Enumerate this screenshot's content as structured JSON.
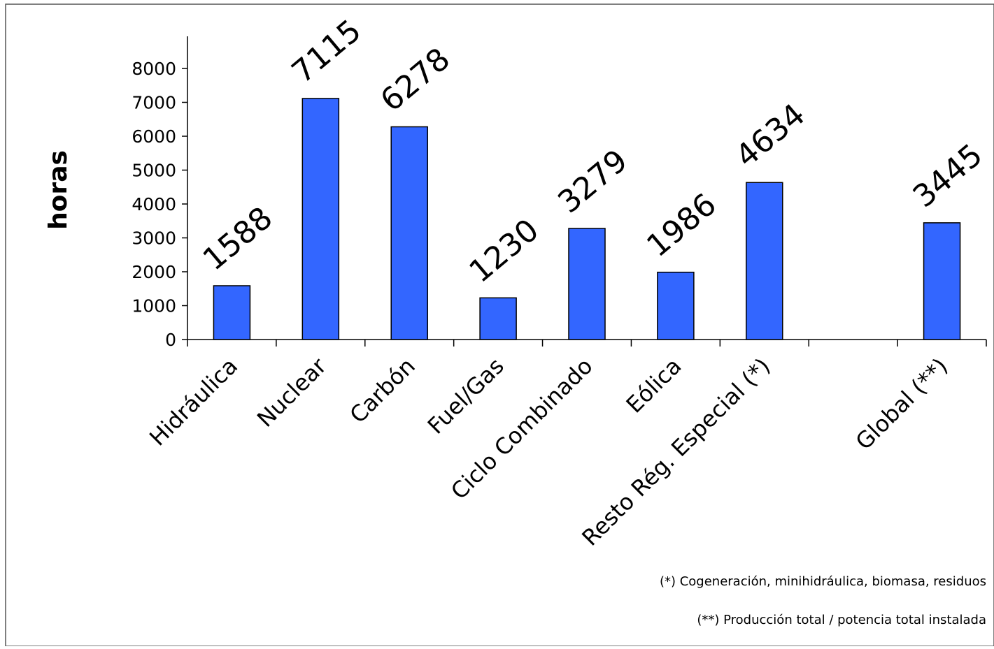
{
  "chart_data": {
    "type": "bar",
    "title": "",
    "xlabel": "",
    "ylabel": "horas",
    "ylim": [
      0,
      8000
    ],
    "y_ticks": [
      0,
      1000,
      2000,
      3000,
      4000,
      5000,
      6000,
      7000,
      8000
    ],
    "categories": [
      "Hidráulica",
      "Nuclear",
      "Carbón",
      "Fuel/Gas",
      "Ciclo Combinado",
      "Eólica",
      "Resto Rég. Especial (*)",
      "",
      "Global (**)"
    ],
    "values": [
      1588,
      7115,
      6278,
      1230,
      3279,
      1986,
      4634,
      null,
      3445
    ],
    "data_labels": [
      "1588",
      "7115",
      "6278",
      "1230",
      "3279",
      "1986",
      "4634",
      "",
      "3445"
    ],
    "bar_color": "#3366FF",
    "grid": false,
    "legend": "none",
    "footnotes": [
      "(*) Cogeneración, minihidráulica, biomasa, residuos",
      "(**) Producción total / potencia total instalada"
    ]
  }
}
